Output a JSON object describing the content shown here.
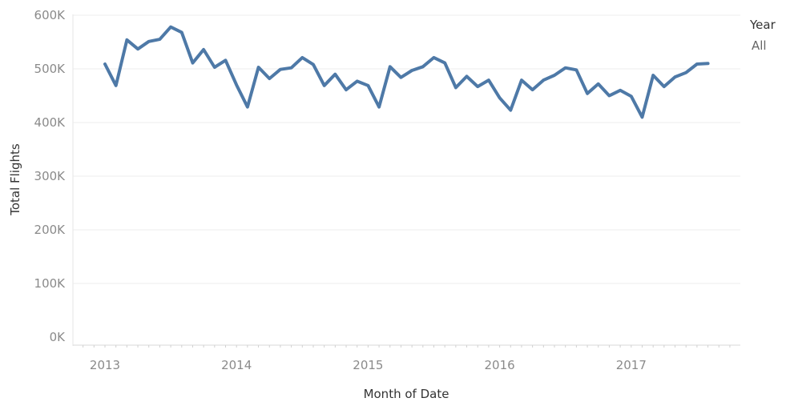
{
  "chart_data": {
    "type": "line",
    "title": "",
    "xlabel": "Month of Date",
    "ylabel": "Total Flights",
    "x_tick_labels": [
      "2013",
      "2014",
      "2015",
      "2016",
      "2017"
    ],
    "y_tick_labels": [
      "0K",
      "100K",
      "200K",
      "300K",
      "400K",
      "500K",
      "600K"
    ],
    "ylim": [
      0,
      600000
    ],
    "x_start": "2013-01",
    "x_end": "2017-08",
    "grid": true,
    "legend": {
      "title": "Year",
      "value": "All",
      "placement": "top-right"
    },
    "line_color": "#4e79a7",
    "x": [
      "2013-01",
      "2013-02",
      "2013-03",
      "2013-04",
      "2013-05",
      "2013-06",
      "2013-07",
      "2013-08",
      "2013-09",
      "2013-10",
      "2013-11",
      "2013-12",
      "2014-01",
      "2014-02",
      "2014-03",
      "2014-04",
      "2014-05",
      "2014-06",
      "2014-07",
      "2014-08",
      "2014-09",
      "2014-10",
      "2014-11",
      "2014-12",
      "2015-01",
      "2015-02",
      "2015-03",
      "2015-04",
      "2015-05",
      "2015-06",
      "2015-07",
      "2015-08",
      "2015-09",
      "2015-10",
      "2015-11",
      "2015-12",
      "2016-01",
      "2016-02",
      "2016-03",
      "2016-04",
      "2016-05",
      "2016-06",
      "2016-07",
      "2016-08",
      "2016-09",
      "2016-10",
      "2016-11",
      "2016-12",
      "2017-01",
      "2017-02",
      "2017-03",
      "2017-04",
      "2017-05",
      "2017-06",
      "2017-07",
      "2017-08"
    ],
    "series": [
      {
        "values": [
          509000,
          469000,
          554000,
          537000,
          551000,
          555000,
          578000,
          568000,
          511000,
          536000,
          503000,
          516000,
          470000,
          429000,
          503000,
          482000,
          499000,
          502000,
          521000,
          508000,
          469000,
          490000,
          461000,
          477000,
          469000,
          429000,
          504000,
          484000,
          497000,
          504000,
          521000,
          511000,
          465000,
          486000,
          467000,
          479000,
          446000,
          423000,
          479000,
          461000,
          479000,
          488000,
          502000,
          498000,
          454000,
          472000,
          450000,
          460000,
          449000,
          410000,
          488000,
          467000,
          485000,
          493000,
          509000,
          510000
        ]
      }
    ]
  }
}
